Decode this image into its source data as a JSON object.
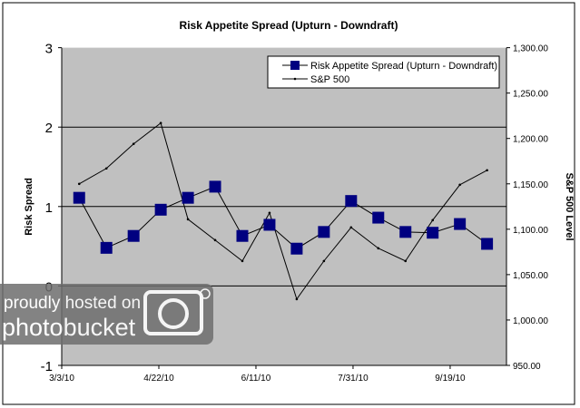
{
  "chart_data": {
    "type": "line",
    "title": "Risk Appetite Spread (Upturn - Downdraft)",
    "x": [
      "3/12/10",
      "3/26/10",
      "4/9/10",
      "4/23/10",
      "5/7/10",
      "5/21/10",
      "6/4/10",
      "6/18/10",
      "7/2/10",
      "7/16/10",
      "7/30/10",
      "8/13/10",
      "8/27/10",
      "9/10/10",
      "9/24/10",
      "10/8/10"
    ],
    "xlim": [
      "3/3/10",
      "10/18/10"
    ],
    "xticks": [
      "3/3/10",
      "4/22/10",
      "6/11/10",
      "7/31/10",
      "9/19/10"
    ],
    "ylabel": "Risk Spread",
    "ylim": [
      -1,
      3
    ],
    "yticks": [
      "-1",
      "0",
      "1",
      "2",
      "3"
    ],
    "y2label": "S&P 500 Level",
    "y2lim": [
      950,
      1300
    ],
    "y2ticks": [
      "950.00",
      "1,000.00",
      "1,050.00",
      "1,100.00",
      "1,150.00",
      "1,200.00",
      "1,250.00",
      "1,300.00"
    ],
    "grid": "horizontal major (left axis)",
    "legend_position": "top-right",
    "plot_background": "#c0c0c0",
    "series": [
      {
        "name": "Risk Appetite Spread (Upturn - Downdraft)",
        "axis": "left",
        "marker": "square",
        "color": "#000080",
        "values": [
          1.11,
          0.48,
          0.63,
          0.96,
          1.11,
          1.25,
          0.63,
          0.77,
          0.47,
          0.68,
          1.07,
          0.86,
          0.68,
          0.67,
          0.78,
          0.53
        ]
      },
      {
        "name": "S&P 500",
        "axis": "right",
        "marker": "dot",
        "color": "#000000",
        "values": [
          1150,
          1167,
          1194,
          1217,
          1111,
          1088,
          1065,
          1118,
          1023,
          1065,
          1102,
          1079,
          1065,
          1110,
          1149,
          1165
        ]
      }
    ]
  },
  "watermark": {
    "line1": "proudly hosted on",
    "line2": "photobucket"
  }
}
